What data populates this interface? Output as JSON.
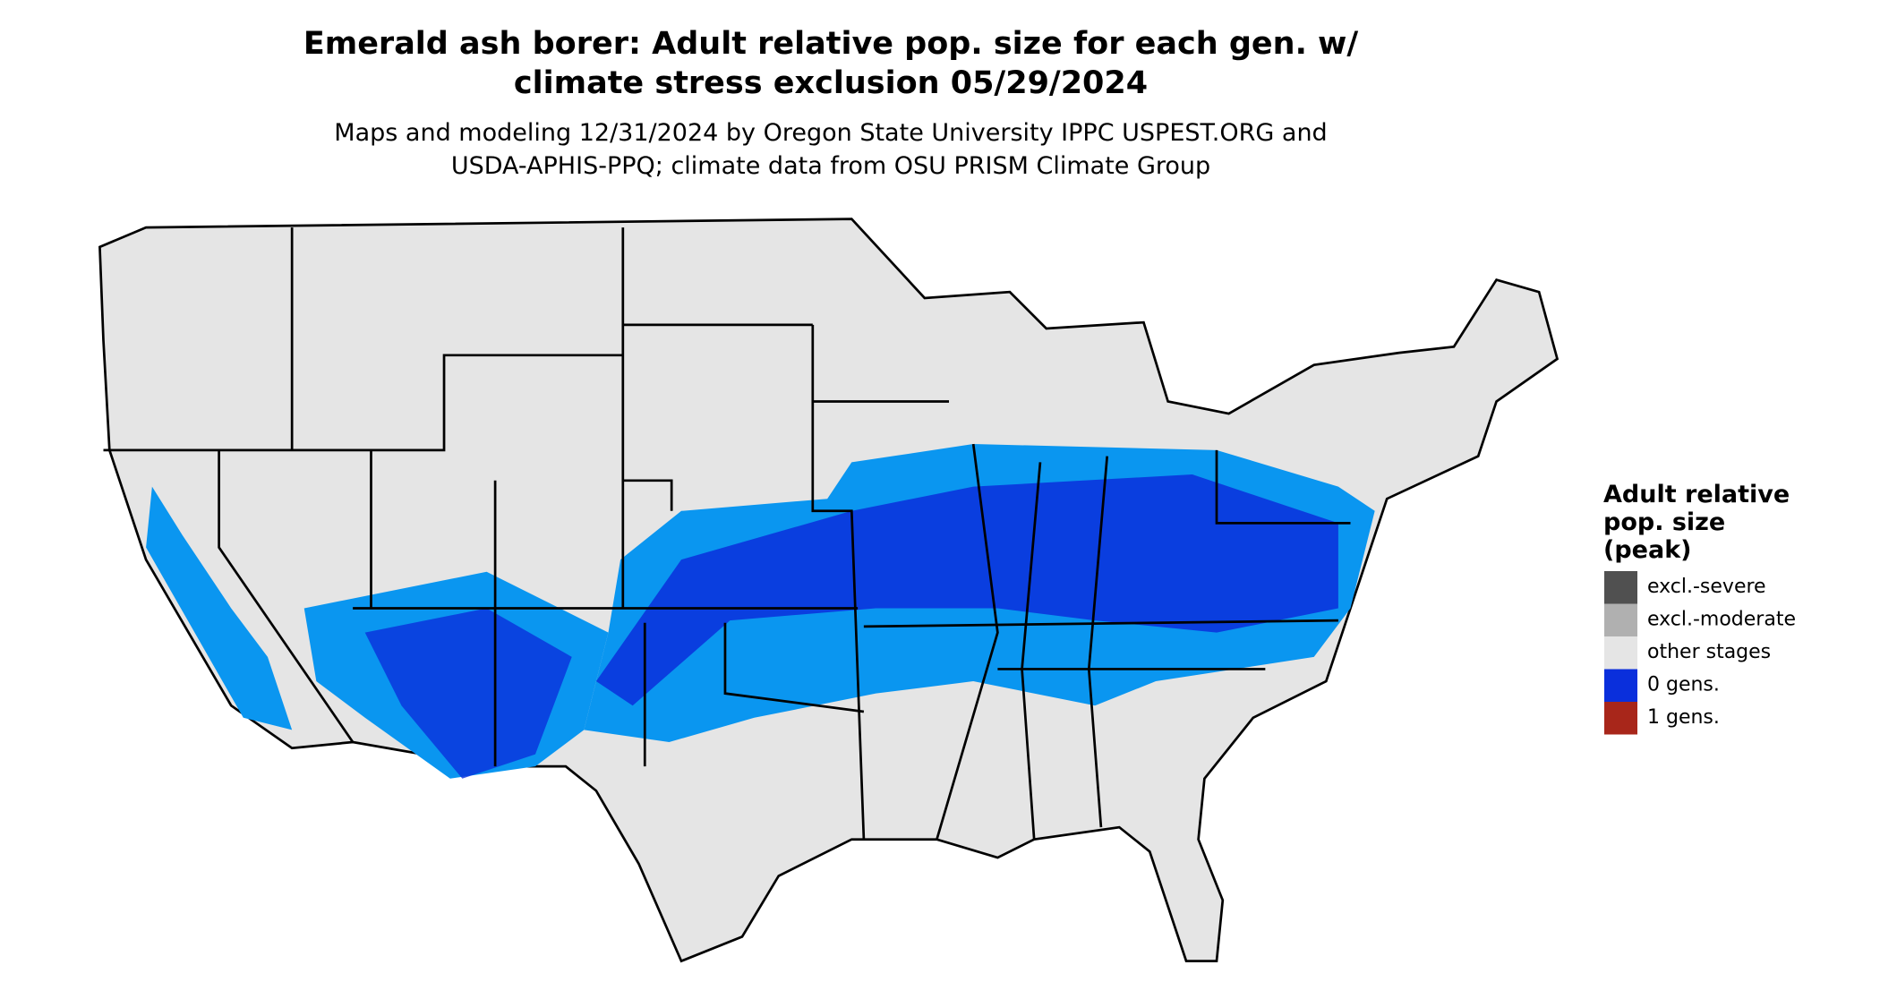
{
  "title": [
    "Emerald ash borer: Adult relative pop. size for each gen. w/",
    "climate stress exclusion 05/29/2024"
  ],
  "subtitle": [
    "Maps and modeling 12/31/2024 by Oregon State University IPPC USPEST.ORG and",
    "USDA-APHIS-PPQ; climate data from OSU PRISM Climate Group"
  ],
  "legend": {
    "title": [
      "Adult relative",
      "pop. size",
      "(peak)"
    ],
    "items": [
      {
        "label": "excl.-severe",
        "color": "#505050"
      },
      {
        "label": "excl.-moderate",
        "color": "#b0b0b0"
      },
      {
        "label": "other stages",
        "color": "#e5e5e5"
      },
      {
        "label": "0 gens.",
        "color": "#0a2fdc"
      },
      {
        "label": "1 gens.",
        "color": "#a8261a"
      }
    ]
  }
}
